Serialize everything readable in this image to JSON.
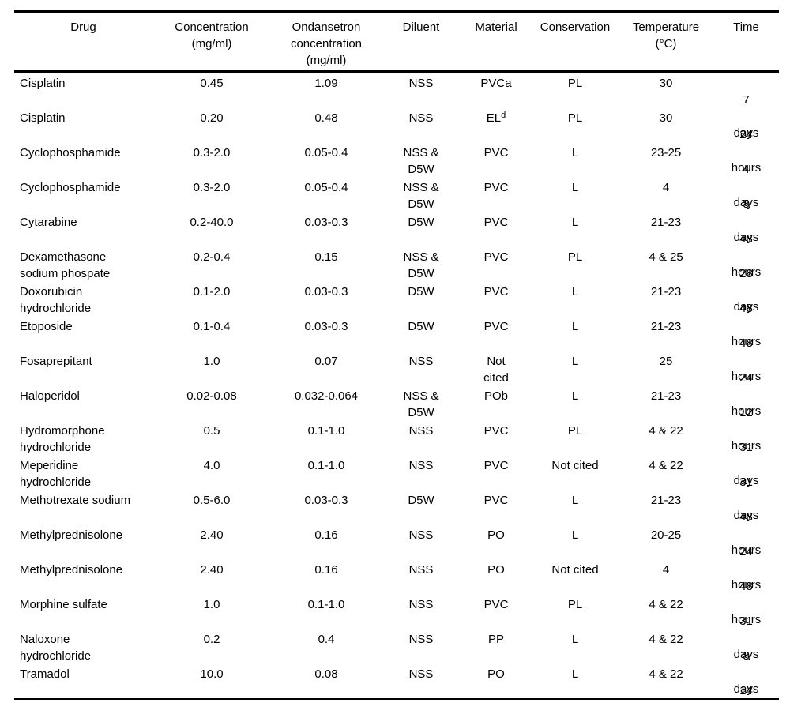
{
  "page": {
    "background": "#ffffff",
    "text_color": "#000000"
  },
  "table": {
    "columns": [
      {
        "id": "drug",
        "label": "Drug"
      },
      {
        "id": "concentration",
        "label": "Concentration\n(mg/ml)"
      },
      {
        "id": "ondansetron_concentration",
        "label": "Ondansetron\nconcentration\n(mg/ml)"
      },
      {
        "id": "diluent",
        "label": "Diluent"
      },
      {
        "id": "material",
        "label": "Material"
      },
      {
        "id": "conservation",
        "label": "Conservation"
      },
      {
        "id": "temperature",
        "label": "Temperature\n(°C)"
      },
      {
        "id": "time",
        "label": "Time"
      }
    ],
    "rows": [
      {
        "drug": "Cisplatin",
        "concentration": "0.45",
        "ondansetron_concentration": "1.09",
        "diluent": "NSS",
        "material": "PVCa",
        "material_sup": "",
        "conservation": "PL",
        "temperature": "30",
        "time_value": "7",
        "time_unit": "days"
      },
      {
        "drug": "Cisplatin",
        "concentration": "0.20",
        "ondansetron_concentration": "0.48",
        "diluent": "NSS",
        "material": "EL",
        "material_sup": "d",
        "conservation": "PL",
        "temperature": "30",
        "time_value": "24",
        "time_unit": "hours"
      },
      {
        "drug": "Cyclophosphamide",
        "concentration": "0.3-2.0",
        "ondansetron_concentration": "0.05-0.4",
        "diluent": "NSS &\nD5W",
        "material": "PVC",
        "material_sup": "",
        "conservation": "L",
        "temperature": "23-25",
        "time_value": "4",
        "time_unit": "days"
      },
      {
        "drug": "Cyclophosphamide",
        "concentration": "0.3-2.0",
        "ondansetron_concentration": "0.05-0.4",
        "diluent": "NSS &\nD5W",
        "material": "PVC",
        "material_sup": "",
        "conservation": "L",
        "temperature": "4",
        "time_value": "8",
        "time_unit": "days"
      },
      {
        "drug": "Cytarabine",
        "concentration": "0.2-40.0",
        "ondansetron_concentration": "0.03-0.3",
        "diluent": "D5W",
        "material": "PVC",
        "material_sup": "",
        "conservation": "L",
        "temperature": "21-23",
        "time_value": "48",
        "time_unit": "hours"
      },
      {
        "drug": "Dexamethasone\nsodium phospate",
        "concentration": "0.2-0.4",
        "ondansetron_concentration": "0.15",
        "diluent": "NSS &\nD5W",
        "material": "PVC",
        "material_sup": "",
        "conservation": "PL",
        "temperature": "4 & 25",
        "time_value": "28",
        "time_unit": "days"
      },
      {
        "drug": "Doxorubicin\nhydrochloride",
        "concentration": "0.1-2.0",
        "ondansetron_concentration": "0.03-0.3",
        "diluent": "D5W",
        "material": "PVC",
        "material_sup": "",
        "conservation": "L",
        "temperature": "21-23",
        "time_value": "48",
        "time_unit": "hours"
      },
      {
        "drug": "Etoposide",
        "concentration": "0.1-0.4",
        "ondansetron_concentration": "0.03-0.3",
        "diluent": "D5W",
        "material": "PVC",
        "material_sup": "",
        "conservation": "L",
        "temperature": "21-23",
        "time_value": "48",
        "time_unit": "hours"
      },
      {
        "drug": "Fosaprepitant",
        "concentration": "1.0",
        "ondansetron_concentration": "0.07",
        "diluent": "NSS",
        "material": "Not\ncited",
        "material_sup": "",
        "conservation": "L",
        "temperature": "25",
        "time_value": "24",
        "time_unit": "hours"
      },
      {
        "drug": "Haloperidol",
        "concentration": "0.02-0.08",
        "ondansetron_concentration": "0.032-0.064",
        "diluent": "NSS &\nD5W",
        "material": "POb",
        "material_sup": "",
        "conservation": "L",
        "temperature": "21-23",
        "time_value": "12",
        "time_unit": "hours"
      },
      {
        "drug": "Hydromorphone\nhydrochloride",
        "concentration": "0.5",
        "ondansetron_concentration": "0.1-1.0",
        "diluent": "NSS",
        "material": "PVC",
        "material_sup": "",
        "conservation": "PL",
        "temperature": "4 & 22",
        "time_value": "31",
        "time_unit": "days"
      },
      {
        "drug": "Meperidine\nhydrochloride",
        "concentration": "4.0",
        "ondansetron_concentration": "0.1-1.0",
        "diluent": "NSS",
        "material": "PVC",
        "material_sup": "",
        "conservation": "Not cited",
        "temperature": "4 & 22",
        "time_value": "31",
        "time_unit": "days"
      },
      {
        "drug": "Methotrexate sodium",
        "concentration": "0.5-6.0",
        "ondansetron_concentration": "0.03-0.3",
        "diluent": "D5W",
        "material": "PVC",
        "material_sup": "",
        "conservation": "L",
        "temperature": "21-23",
        "time_value": "48",
        "time_unit": "hours"
      },
      {
        "drug": "Methylprednisolone",
        "concentration": "2.40",
        "ondansetron_concentration": "0.16",
        "diluent": "NSS",
        "material": "PO",
        "material_sup": "",
        "conservation": "L",
        "temperature": "20-25",
        "time_value": "24",
        "time_unit": "hours"
      },
      {
        "drug": "Methylprednisolone",
        "concentration": "2.40",
        "ondansetron_concentration": "0.16",
        "diluent": "NSS",
        "material": "PO",
        "material_sup": "",
        "conservation": "Not cited",
        "temperature": "4",
        "time_value": "48",
        "time_unit": "hours"
      },
      {
        "drug": "Morphine sulfate",
        "concentration": "1.0",
        "ondansetron_concentration": "0.1-1.0",
        "diluent": "NSS",
        "material": "PVC",
        "material_sup": "",
        "conservation": "PL",
        "temperature": "4 & 22",
        "time_value": "31",
        "time_unit": "days"
      },
      {
        "drug": "Naloxone\nhydrochloride",
        "concentration": "0.2",
        "ondansetron_concentration": "0.4",
        "diluent": "NSS",
        "material": "PP",
        "material_sup": "",
        "conservation": "L",
        "temperature": "4 & 22",
        "time_value": "8",
        "time_unit": "days"
      },
      {
        "drug": "Tramadol",
        "concentration": "10.0",
        "ondansetron_concentration": "0.08",
        "diluent": "NSS",
        "material": "PO",
        "material_sup": "",
        "conservation": "L",
        "temperature": "4 & 22",
        "time_value": "14",
        "time_unit": "days"
      }
    ]
  }
}
